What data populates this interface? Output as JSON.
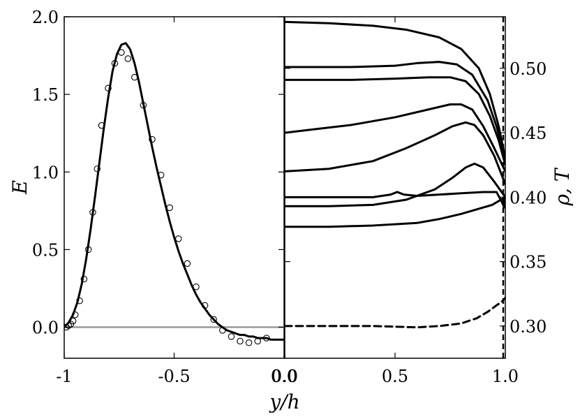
{
  "chart_data": [
    {
      "type": "line",
      "panel": "left",
      "xlabel": "y/h",
      "ylabel": "E",
      "xlim": [
        -1.0,
        0.0
      ],
      "ylim": [
        -0.2,
        2.0
      ],
      "xticks": [
        -1.0,
        -0.5,
        0.0
      ],
      "xtick_labels": [
        "-1",
        "-0.5",
        "0.0"
      ],
      "yticks": [
        0.0,
        0.5,
        1.0,
        1.5,
        2.0
      ],
      "ytick_labels": [
        "0.0",
        "0.5",
        "1.0",
        "1.5",
        "2.0"
      ],
      "grid": false,
      "series": [
        {
          "style": "solid-black",
          "x": [
            -1.0,
            -0.98,
            -0.96,
            -0.94,
            -0.92,
            -0.9,
            -0.88,
            -0.86,
            -0.84,
            -0.82,
            -0.8,
            -0.78,
            -0.76,
            -0.74,
            -0.72,
            -0.7,
            -0.68,
            -0.66,
            -0.64,
            -0.62,
            -0.6,
            -0.58,
            -0.56,
            -0.54,
            -0.52,
            -0.5,
            -0.48,
            -0.46,
            -0.44,
            -0.42,
            -0.4,
            -0.38,
            -0.36,
            -0.34,
            -0.32,
            -0.3,
            -0.28,
            -0.26,
            -0.24,
            -0.22,
            -0.2,
            -0.18,
            -0.16,
            -0.14,
            -0.12,
            -0.1,
            -0.08,
            -0.06,
            -0.04,
            -0.02,
            0.0
          ],
          "y": [
            0.0,
            0.03,
            0.08,
            0.16,
            0.28,
            0.44,
            0.63,
            0.84,
            1.06,
            1.28,
            1.48,
            1.65,
            1.76,
            1.82,
            1.83,
            1.79,
            1.7,
            1.58,
            1.44,
            1.3,
            1.16,
            1.03,
            0.91,
            0.79,
            0.68,
            0.58,
            0.49,
            0.41,
            0.34,
            0.27,
            0.21,
            0.16,
            0.12,
            0.08,
            0.05,
            0.02,
            0.0,
            -0.02,
            -0.03,
            -0.04,
            -0.05,
            -0.05,
            -0.06,
            -0.06,
            -0.07,
            -0.07,
            -0.07,
            -0.08,
            -0.08,
            -0.08,
            -0.08
          ]
        },
        {
          "style": "markers-open-circle",
          "x": [
            -0.99,
            -0.98,
            -0.97,
            -0.96,
            -0.95,
            -0.93,
            -0.91,
            -0.89,
            -0.87,
            -0.85,
            -0.83,
            -0.8,
            -0.77,
            -0.74,
            -0.71,
            -0.68,
            -0.64,
            -0.6,
            -0.56,
            -0.52,
            -0.48,
            -0.44,
            -0.4,
            -0.36,
            -0.32,
            -0.28,
            -0.24,
            -0.2,
            -0.16,
            -0.12,
            -0.08
          ],
          "y": [
            0.0,
            0.01,
            0.02,
            0.04,
            0.08,
            0.17,
            0.31,
            0.5,
            0.74,
            1.02,
            1.3,
            1.54,
            1.7,
            1.77,
            1.73,
            1.61,
            1.43,
            1.21,
            0.98,
            0.77,
            0.57,
            0.41,
            0.26,
            0.14,
            0.05,
            -0.02,
            -0.06,
            -0.09,
            -0.1,
            -0.09,
            -0.07
          ]
        }
      ],
      "reference_line": {
        "y": 0.0,
        "color": "#999999"
      }
    },
    {
      "type": "line",
      "panel": "right",
      "xlabel": "",
      "ylabel": "ρ, T",
      "xlim": [
        0.0,
        1.0
      ],
      "ylim": [
        0.275,
        0.54
      ],
      "xticks": [
        0.0,
        0.5,
        1.0
      ],
      "xtick_labels": [
        "0.0",
        "0.5",
        "1.0"
      ],
      "yticks": [
        0.3,
        0.35,
        0.4,
        0.45,
        0.5
      ],
      "ytick_labels": [
        "0.30",
        "0.35",
        "0.40",
        "0.45",
        "0.50"
      ],
      "y_axis_side": "right",
      "grid": false,
      "series": [
        {
          "style": "solid",
          "x": [
            0.0,
            0.2,
            0.4,
            0.55,
            0.7,
            0.8,
            0.88,
            0.93,
            0.97,
            1.0
          ],
          "y": [
            0.536,
            0.535,
            0.533,
            0.53,
            0.524,
            0.515,
            0.5,
            0.48,
            0.455,
            0.43
          ]
        },
        {
          "style": "solid",
          "x": [
            0.0,
            0.3,
            0.5,
            0.6,
            0.7,
            0.78,
            0.85,
            0.92,
            0.96,
            1.0
          ],
          "y": [
            0.501,
            0.501,
            0.502,
            0.504,
            0.505,
            0.503,
            0.495,
            0.475,
            0.455,
            0.43
          ]
        },
        {
          "style": "solid",
          "x": [
            0.0,
            0.3,
            0.5,
            0.65,
            0.75,
            0.82,
            0.88,
            0.93,
            0.97,
            1.0
          ],
          "y": [
            0.491,
            0.491,
            0.492,
            0.493,
            0.493,
            0.49,
            0.48,
            0.463,
            0.444,
            0.425
          ]
        },
        {
          "style": "solid",
          "x": [
            0.0,
            0.15,
            0.3,
            0.5,
            0.65,
            0.75,
            0.8,
            0.85,
            0.9,
            0.95,
            1.0
          ],
          "y": [
            0.45,
            0.453,
            0.456,
            0.462,
            0.468,
            0.472,
            0.472,
            0.468,
            0.455,
            0.438,
            0.42
          ]
        },
        {
          "style": "solid",
          "x": [
            0.0,
            0.2,
            0.4,
            0.55,
            0.68,
            0.76,
            0.82,
            0.86,
            0.9,
            0.95,
            1.0
          ],
          "y": [
            0.42,
            0.422,
            0.428,
            0.438,
            0.448,
            0.455,
            0.458,
            0.456,
            0.448,
            0.432,
            0.41
          ]
        },
        {
          "style": "solid",
          "x": [
            0.0,
            0.2,
            0.4,
            0.55,
            0.68,
            0.76,
            0.82,
            0.86,
            0.9,
            0.95,
            1.0
          ],
          "y": [
            0.393,
            0.393,
            0.394,
            0.398,
            0.406,
            0.415,
            0.423,
            0.426,
            0.423,
            0.412,
            0.4
          ]
        },
        {
          "style": "solid",
          "x": [
            0.0,
            0.2,
            0.4,
            0.5,
            0.6,
            0.7,
            0.8,
            0.88,
            0.94,
            1.0
          ],
          "y": [
            0.377,
            0.377,
            0.378,
            0.379,
            0.38,
            0.383,
            0.387,
            0.391,
            0.394,
            0.4
          ]
        },
        {
          "style": "solid",
          "x": [
            0.0,
            0.1,
            0.2,
            0.3,
            0.4,
            0.48,
            0.51,
            0.54,
            0.6,
            0.7,
            0.8,
            0.9,
            0.96,
            0.985,
            0.995,
            1.0
          ],
          "y": [
            0.4,
            0.4,
            0.4,
            0.4,
            0.4,
            0.402,
            0.404,
            0.402,
            0.401,
            0.402,
            0.403,
            0.404,
            0.404,
            0.396,
            0.392,
            0.4
          ]
        },
        {
          "style": "dashed",
          "x": [
            0.0,
            0.2,
            0.4,
            0.6,
            0.7,
            0.8,
            0.87,
            0.92,
            0.96,
            0.985,
            1.0
          ],
          "y": [
            0.3,
            0.3,
            0.3,
            0.299,
            0.3,
            0.302,
            0.306,
            0.311,
            0.316,
            0.319,
            0.322
          ]
        }
      ],
      "vertical_dashed_line": {
        "x": 1.0
      }
    }
  ]
}
